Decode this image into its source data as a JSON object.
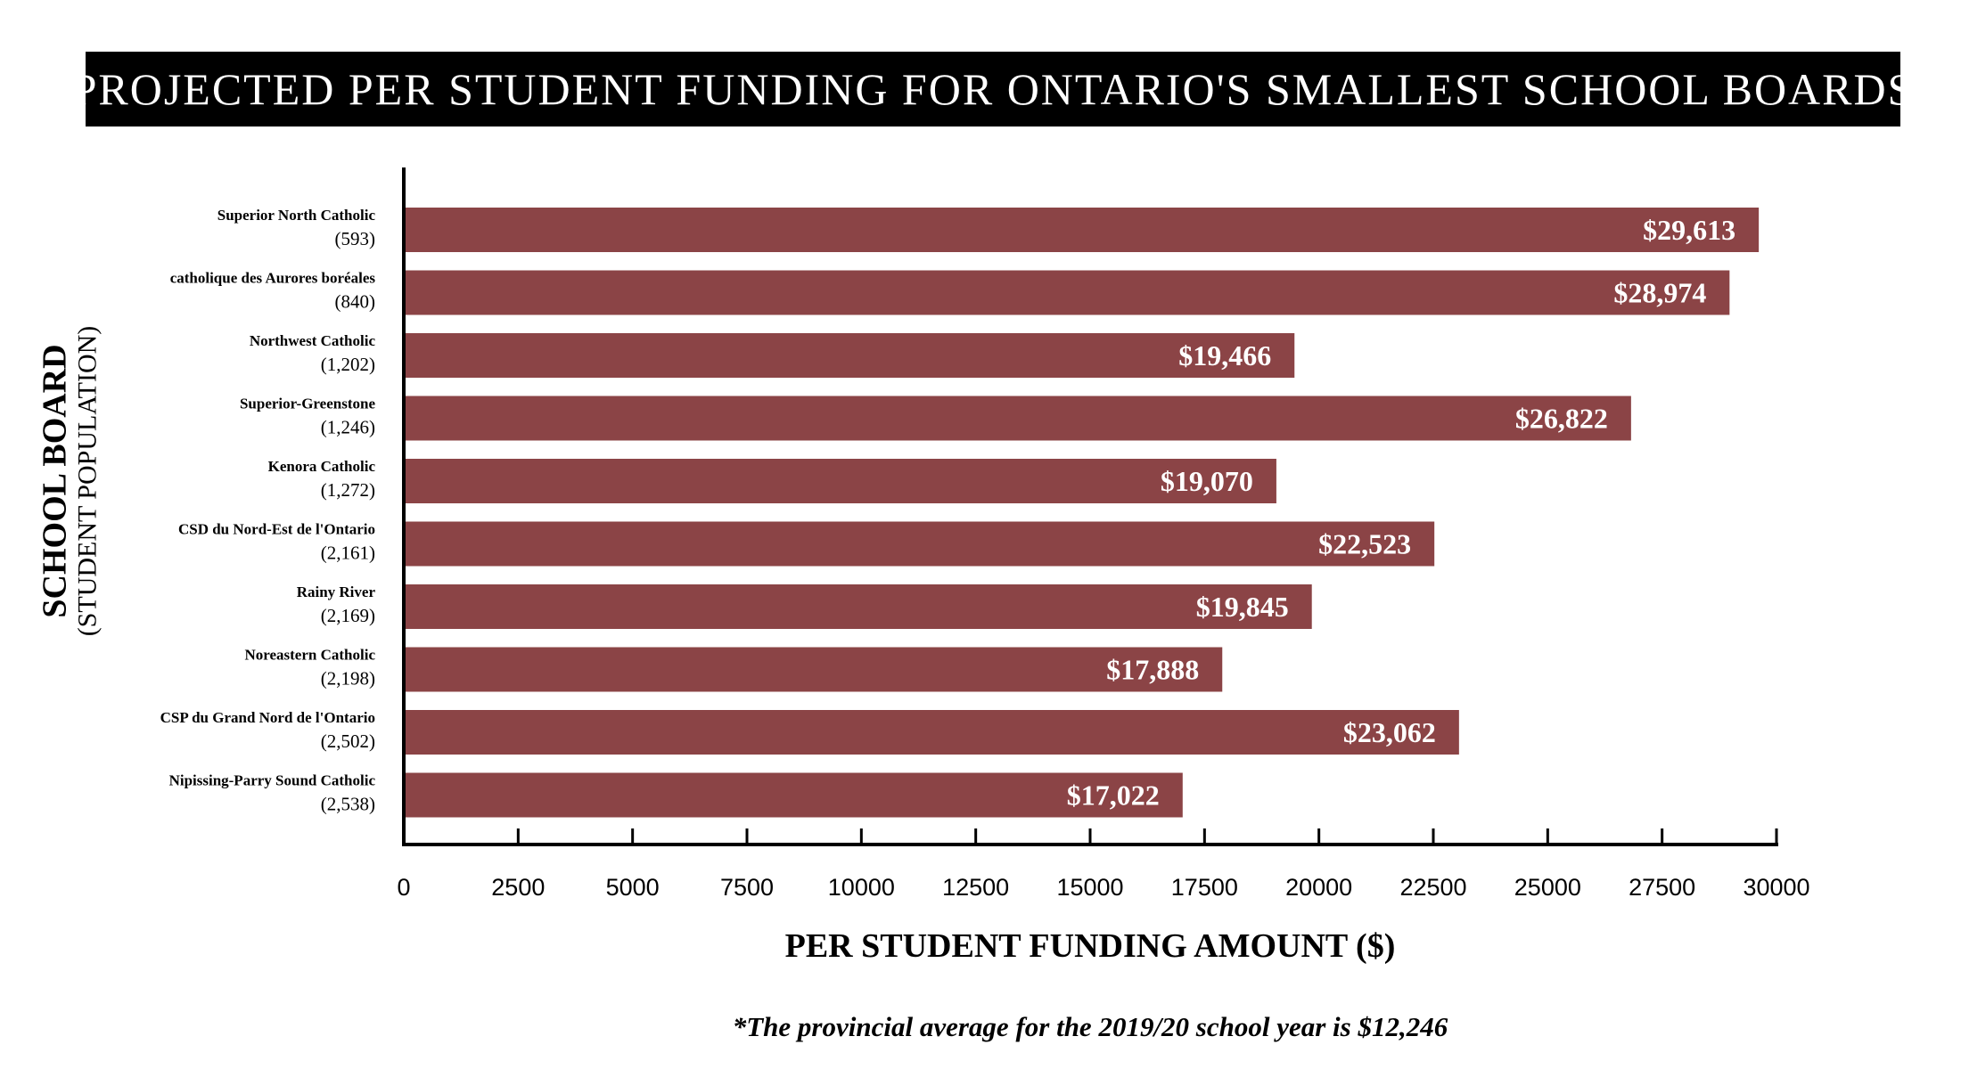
{
  "title": "PROJECTED PER STUDENT FUNDING FOR ONTARIO'S SMALLEST SCHOOL BOARDS",
  "footnote": "*The provincial average for the 2019/20 school year is $12,246",
  "colors": {
    "bar": "#8b4446",
    "banner": "#000000",
    "axis": "#000000"
  },
  "chart_data": {
    "type": "bar",
    "orientation": "horizontal",
    "title": "PROJECTED PER STUDENT FUNDING FOR ONTARIO'S SMALLEST SCHOOL BOARDS",
    "ylabel": "SCHOOL BOARD",
    "ylabel_sub": "(STUDENT POPULATION)",
    "xlabel": "PER STUDENT FUNDING AMOUNT ($)",
    "xlim": [
      0,
      30000
    ],
    "xticks": [
      0,
      2500,
      5000,
      7500,
      10000,
      12500,
      15000,
      17500,
      20000,
      22500,
      25000,
      27500,
      30000
    ],
    "xtick_labels": [
      "0",
      "2500",
      "5000",
      "7500",
      "10000",
      "12500",
      "15000",
      "17500",
      "20000",
      "22500",
      "25000",
      "27500",
      "30000"
    ],
    "grid": false,
    "categories": [
      "Superior North Catholic",
      "catholique des Aurores boréales",
      "Northwest Catholic",
      "Superior-Greenstone",
      "Kenora Catholic",
      "CSD du Nord-Est de l'Ontario",
      "Rainy River",
      "Noreastern Catholic",
      "CSP du Grand Nord de l'Ontario",
      "Nipissing-Parry Sound Catholic"
    ],
    "populations": [
      "(593)",
      "(840)",
      "(1,202)",
      "(1,246)",
      "(1,272)",
      "(2,161)",
      "(2,169)",
      "(2,198)",
      "(2,502)",
      "(2,538)"
    ],
    "values": [
      29613,
      28974,
      19466,
      26822,
      19070,
      22523,
      19845,
      17888,
      23062,
      17022
    ],
    "value_labels": [
      "$29,613",
      "$28,974",
      "$19,466",
      "$26,822",
      "$19,070",
      "$22,523",
      "$19,845",
      "$17,888",
      "$23,062",
      "$17,022"
    ]
  }
}
